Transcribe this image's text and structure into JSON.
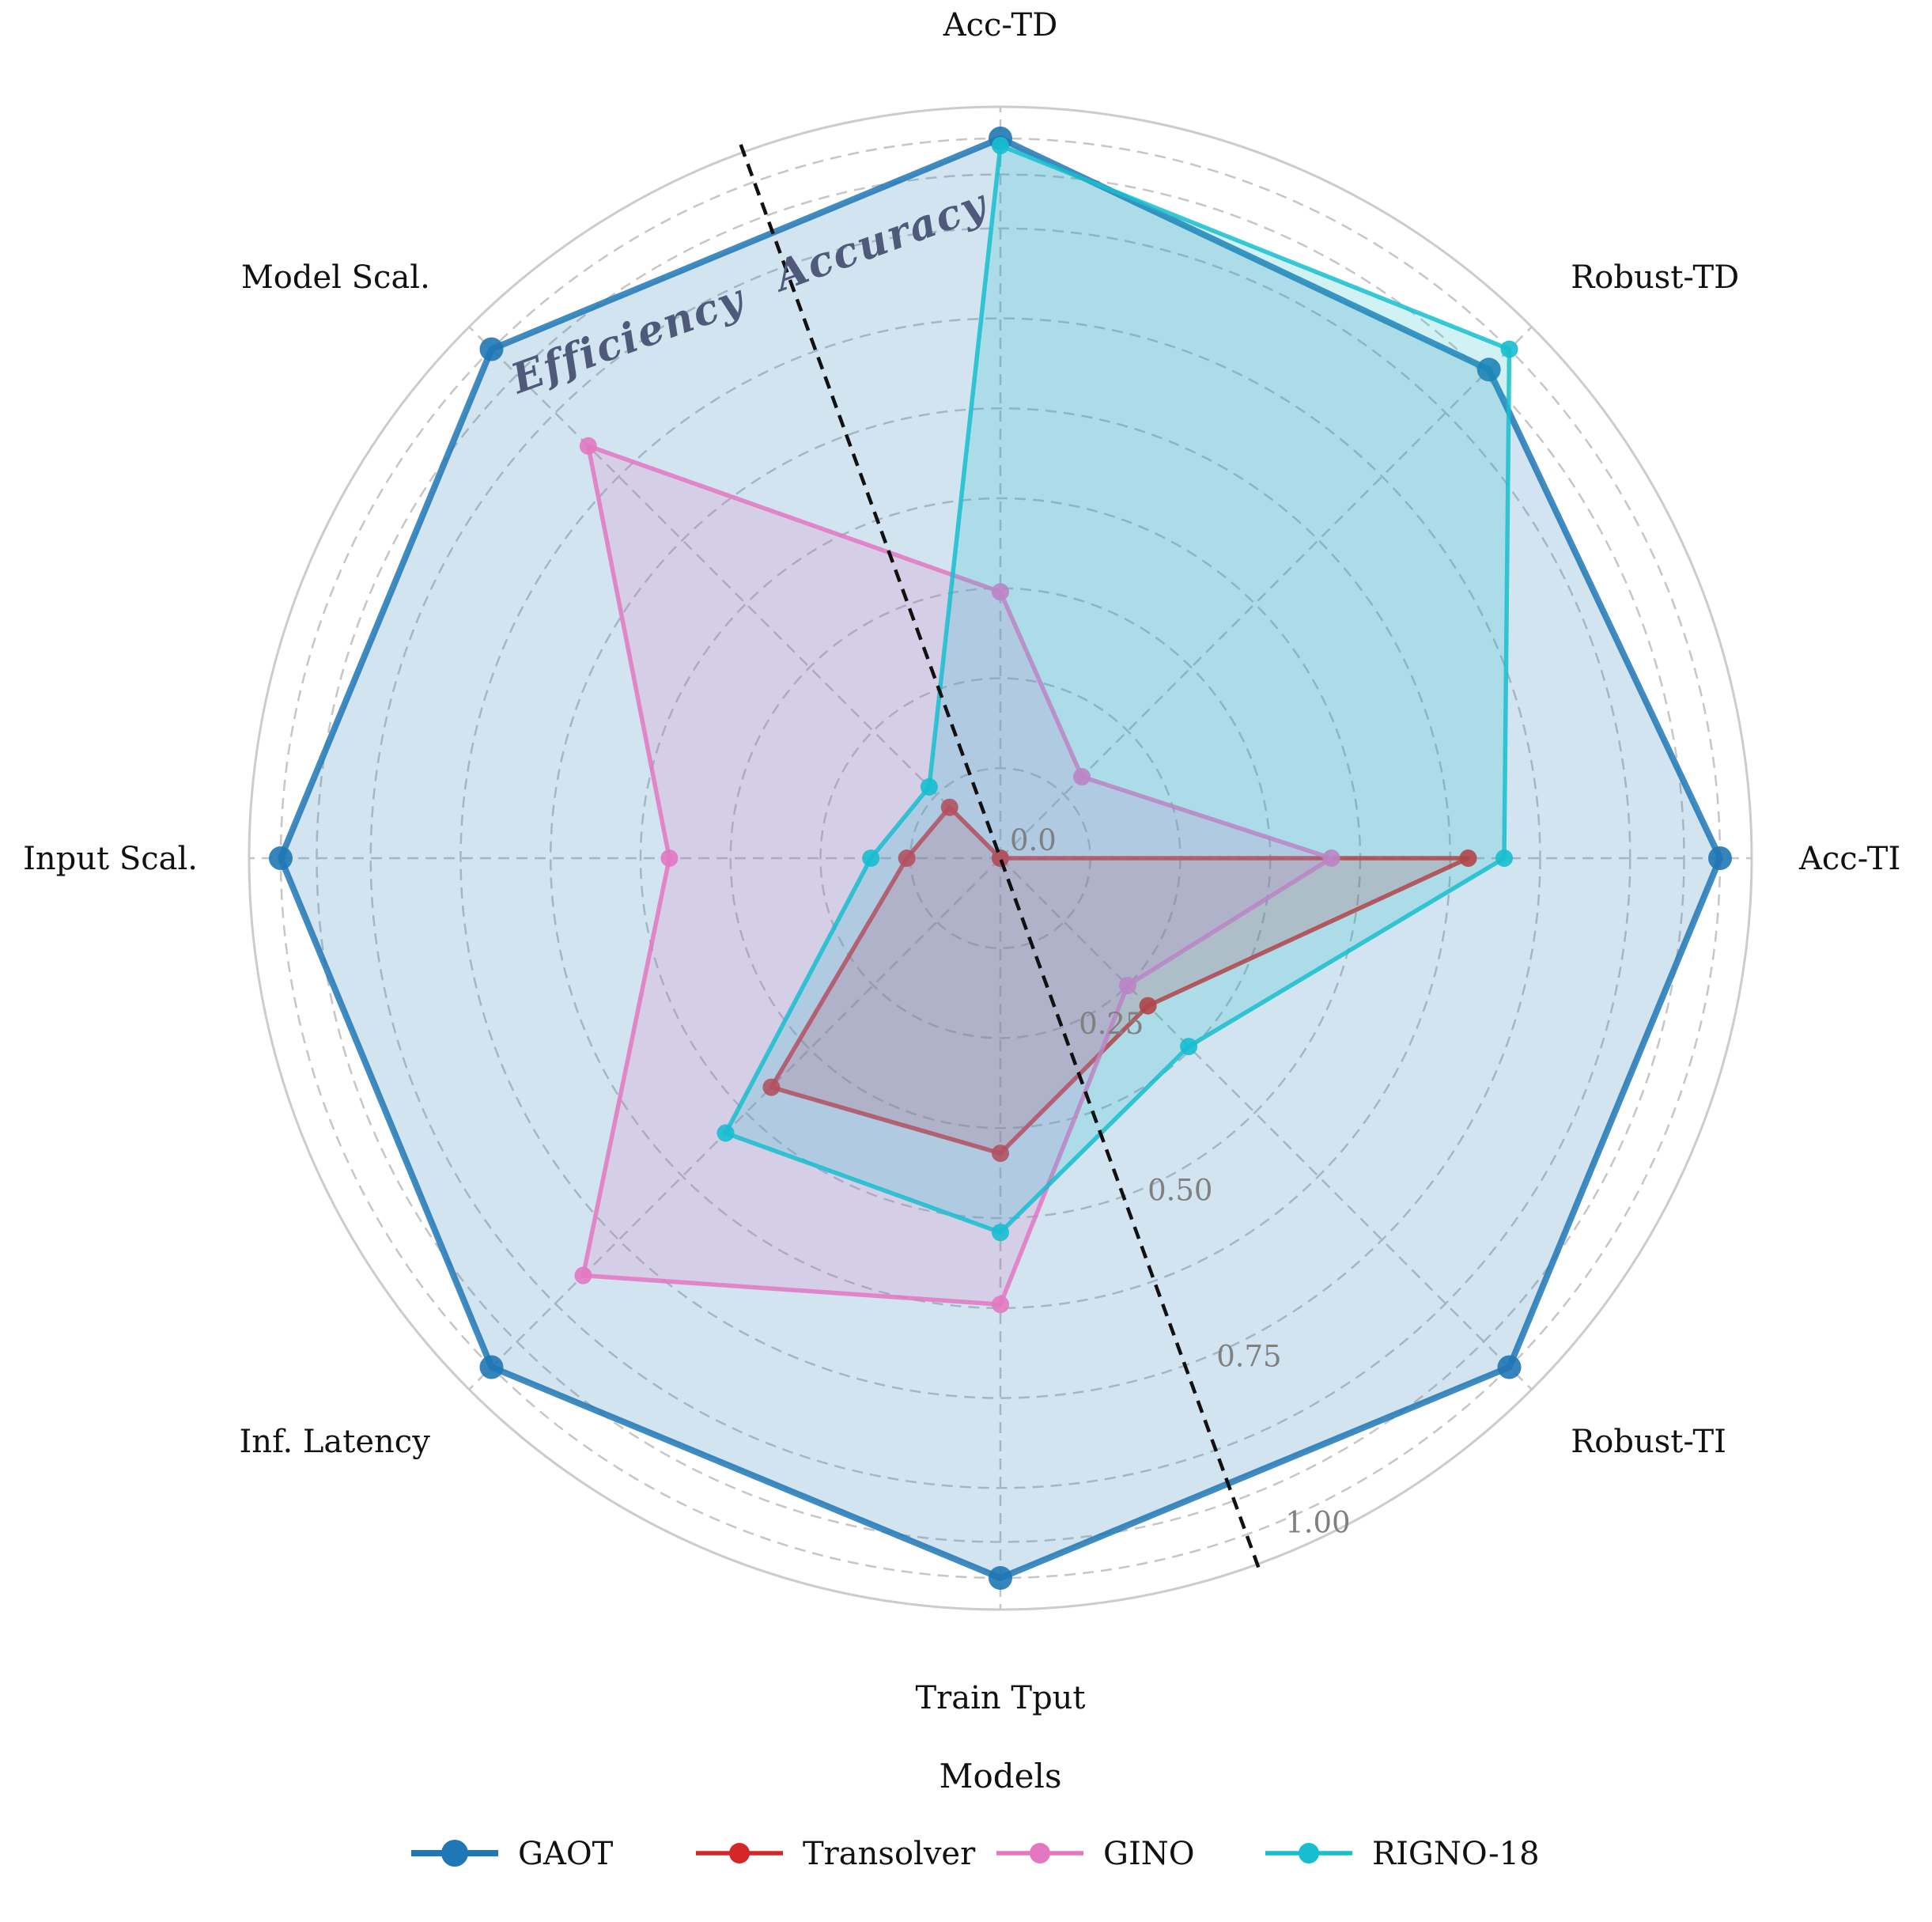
{
  "chart_data": {
    "type": "radar",
    "axes": [
      "Acc-TI",
      "Acc-TD",
      "Robust-TD",
      "Model Scal.",
      "Input Scal.",
      "Inf. Latency",
      "Train Tput",
      "Robust-TI"
    ],
    "axis_angles_deg": [
      0,
      90,
      45,
      135,
      180,
      225,
      270,
      315
    ],
    "radial_range": [
      0,
      1
    ],
    "radial_ticks": [
      {
        "value": 0.0,
        "label": "0.0"
      },
      {
        "value": 0.25,
        "label": "0.25"
      },
      {
        "value": 0.5,
        "label": "0.50"
      },
      {
        "value": 0.75,
        "label": "0.75"
      },
      {
        "value": 1.0,
        "label": "1.00"
      }
    ],
    "minor_grid": [
      0.125,
      0.375,
      0.625,
      0.875,
      0.95
    ],
    "grid": true,
    "divider_angle_deg": 110,
    "regions": [
      "Accuracy",
      "Efficiency"
    ],
    "series": [
      {
        "name": "GAOT",
        "color": "#1f77b4",
        "values": [
          1.0,
          1.0,
          0.96,
          1.0,
          1.0,
          1.0,
          1.0,
          1.0
        ]
      },
      {
        "name": "Transolver",
        "color": "#d62728",
        "values": [
          0.65,
          0.0,
          0.0,
          0.1,
          0.13,
          0.45,
          0.41,
          0.29
        ]
      },
      {
        "name": "GINO",
        "color": "#e377c2",
        "values": [
          0.46,
          0.37,
          0.16,
          0.81,
          0.46,
          0.82,
          0.62,
          0.25
        ]
      },
      {
        "name": "RIGNO-18",
        "color": "#17becf",
        "values": [
          0.7,
          0.99,
          1.0,
          0.14,
          0.18,
          0.54,
          0.52,
          0.37
        ]
      }
    ],
    "legend": {
      "title": "Models",
      "placement": "bottom-center"
    }
  }
}
